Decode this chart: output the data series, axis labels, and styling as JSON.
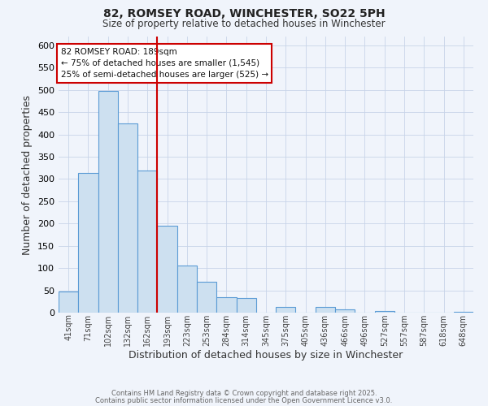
{
  "title": "82, ROMSEY ROAD, WINCHESTER, SO22 5PH",
  "subtitle": "Size of property relative to detached houses in Winchester",
  "xlabel": "Distribution of detached houses by size in Winchester",
  "ylabel": "Number of detached properties",
  "categories": [
    "41sqm",
    "71sqm",
    "102sqm",
    "132sqm",
    "162sqm",
    "193sqm",
    "223sqm",
    "253sqm",
    "284sqm",
    "314sqm",
    "345sqm",
    "375sqm",
    "405sqm",
    "436sqm",
    "466sqm",
    "496sqm",
    "527sqm",
    "557sqm",
    "587sqm",
    "618sqm",
    "648sqm"
  ],
  "bar_values": [
    47,
    313,
    498,
    424,
    320,
    196,
    105,
    70,
    35,
    32,
    0,
    13,
    0,
    13,
    8,
    0,
    3,
    0,
    0,
    0,
    2
  ],
  "bar_color": "#cde0f0",
  "bar_edgecolor": "#5b9bd5",
  "vline_x": 4.5,
  "vline_color": "#cc0000",
  "ylim": [
    0,
    620
  ],
  "yticks": [
    0,
    50,
    100,
    150,
    200,
    250,
    300,
    350,
    400,
    450,
    500,
    550,
    600
  ],
  "annotation_title": "82 ROMSEY ROAD: 189sqm",
  "annotation_line1": "← 75% of detached houses are smaller (1,545)",
  "annotation_line2": "25% of semi-detached houses are larger (525) →",
  "footer1": "Contains HM Land Registry data © Crown copyright and database right 2025.",
  "footer2": "Contains public sector information licensed under the Open Government Licence v3.0.",
  "bg_color": "#f0f4fb",
  "plot_bg_color": "#f0f4fb"
}
